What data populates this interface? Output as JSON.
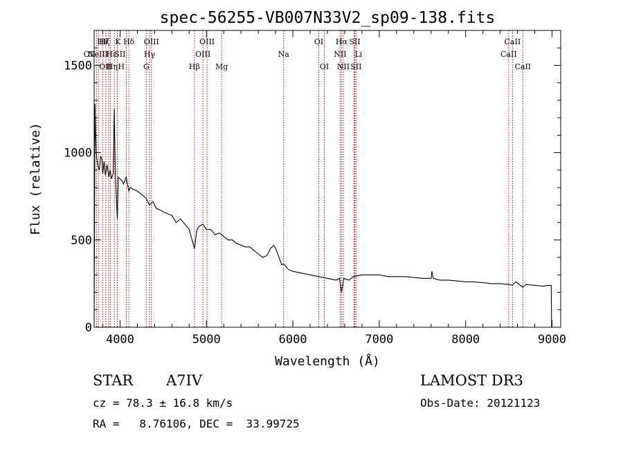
{
  "chart_data": {
    "type": "line",
    "title": "spec-56255-VB007N33V2_sp09-138.fits",
    "xlabel": "Wavelength (Å)",
    "ylabel": "Flux (relative)",
    "xlim": [
      3700,
      9100
    ],
    "ylim": [
      0,
      1700
    ],
    "xticks": [
      {
        "value": 4000,
        "label": "4000"
      },
      {
        "value": 5000,
        "label": "5000"
      },
      {
        "value": 6000,
        "label": "6000"
      },
      {
        "value": 7000,
        "label": "7000"
      },
      {
        "value": 8000,
        "label": "8000"
      },
      {
        "value": 9000,
        "label": "9000"
      }
    ],
    "yticks": [
      {
        "value": 0,
        "label": "0"
      },
      {
        "value": 500,
        "label": "500"
      },
      {
        "value": 1000,
        "label": "1000"
      },
      {
        "value": 1500,
        "label": "1500"
      }
    ],
    "series": [
      {
        "name": "flux",
        "x": [
          3700,
          3710,
          3718,
          3725,
          3735,
          3745,
          3760,
          3775,
          3790,
          3800,
          3815,
          3830,
          3850,
          3870,
          3885,
          3900,
          3920,
          3933,
          3945,
          3968,
          3980,
          4000,
          4020,
          4040,
          4070,
          4101,
          4120,
          4150,
          4200,
          4250,
          4300,
          4340,
          4380,
          4420,
          4470,
          4500,
          4550,
          4600,
          4650,
          4700,
          4750,
          4800,
          4861,
          4890,
          4920,
          4960,
          5000,
          5050,
          5100,
          5150,
          5200,
          5250,
          5300,
          5350,
          5400,
          5450,
          5500,
          5550,
          5600,
          5650,
          5700,
          5740,
          5780,
          5810,
          5840,
          5870,
          5900,
          5950,
          6000,
          6100,
          6200,
          6300,
          6400,
          6500,
          6540,
          6563,
          6590,
          6650,
          6700,
          6800,
          6900,
          7000,
          7100,
          7200,
          7300,
          7400,
          7500,
          7600,
          7610,
          7625,
          7700,
          7800,
          7900,
          8000,
          8100,
          8200,
          8300,
          8400,
          8500,
          8542,
          8580,
          8662,
          8700,
          8800,
          8900,
          8950,
          8990,
          8995,
          9000
        ],
        "y": [
          30,
          1280,
          1100,
          1000,
          950,
          920,
          900,
          980,
          960,
          880,
          950,
          870,
          930,
          860,
          900,
          850,
          880,
          1250,
          880,
          620,
          860,
          850,
          840,
          820,
          860,
          780,
          800,
          790,
          780,
          760,
          740,
          700,
          720,
          680,
          670,
          660,
          650,
          640,
          600,
          620,
          590,
          560,
          450,
          560,
          580,
          590,
          560,
          560,
          530,
          540,
          520,
          500,
          500,
          480,
          470,
          460,
          460,
          440,
          420,
          400,
          410,
          450,
          470,
          440,
          400,
          360,
          360,
          330,
          320,
          310,
          300,
          290,
          280,
          270,
          280,
          200,
          280,
          270,
          290,
          300,
          300,
          300,
          290,
          290,
          290,
          285,
          280,
          280,
          320,
          280,
          270,
          270,
          265,
          260,
          260,
          255,
          250,
          250,
          245,
          240,
          260,
          230,
          245,
          240,
          235,
          240,
          240,
          0,
          0
        ]
      }
    ],
    "lines": [
      {
        "wl": 3727,
        "label": "OII",
        "row": 1,
        "anchor": "end"
      },
      {
        "wl": 3750,
        "label": "OII",
        "row": 2,
        "anchor": "start"
      },
      {
        "wl": 3798,
        "label": "Hθ",
        "row": 0,
        "anchor": "middle"
      },
      {
        "wl": 3835,
        "label": "Hη",
        "row": 2,
        "anchor": "start"
      },
      {
        "wl": 3869,
        "label": "NeIII",
        "row": 1,
        "anchor": "end"
      },
      {
        "wl": 3889,
        "label": "Hζ",
        "row": 0,
        "anchor": "end"
      },
      {
        "wl": 3934,
        "label": "K",
        "row": 0,
        "anchor": "start"
      },
      {
        "wl": 3968,
        "label": "H",
        "row": 2,
        "anchor": "start"
      },
      {
        "wl": 3970,
        "label": "Hε",
        "row": 1,
        "anchor": "end"
      },
      {
        "wl": 4072,
        "label": "SII",
        "row": 1,
        "anchor": "end"
      },
      {
        "wl": 4102,
        "label": "Hδ",
        "row": 0,
        "anchor": "middle"
      },
      {
        "wl": 4304,
        "label": "G",
        "row": 2,
        "anchor": "middle"
      },
      {
        "wl": 4341,
        "label": "Hγ",
        "row": 1,
        "anchor": "middle"
      },
      {
        "wl": 4363,
        "label": "OIII",
        "row": 0,
        "anchor": "middle"
      },
      {
        "wl": 4861,
        "label": "Hβ",
        "row": 2,
        "anchor": "middle"
      },
      {
        "wl": 4959,
        "label": "OIII",
        "row": 1,
        "anchor": "middle"
      },
      {
        "wl": 5007,
        "label": "OIII",
        "row": 0,
        "anchor": "middle"
      },
      {
        "wl": 5175,
        "label": "Mg",
        "row": 2,
        "anchor": "middle"
      },
      {
        "wl": 5893,
        "label": "Na",
        "row": 1,
        "anchor": "middle"
      },
      {
        "wl": 6300,
        "label": "OI",
        "row": 0,
        "anchor": "middle"
      },
      {
        "wl": 6364,
        "label": "OI",
        "row": 2,
        "anchor": "middle"
      },
      {
        "wl": 6548,
        "label": "NII",
        "row": 1,
        "anchor": "middle"
      },
      {
        "wl": 6563,
        "label": "Hα",
        "row": 0,
        "anchor": "middle"
      },
      {
        "wl": 6584,
        "label": "NII",
        "row": 2,
        "anchor": "middle"
      },
      {
        "wl": 6708,
        "label": "Li",
        "row": 1,
        "anchor": "start"
      },
      {
        "wl": 6716,
        "label": "SII",
        "row": 0,
        "anchor": "middle"
      },
      {
        "wl": 6731,
        "label": "SII",
        "row": 2,
        "anchor": "middle"
      },
      {
        "wl": 8498,
        "label": "CaII",
        "row": 1,
        "anchor": "middle"
      },
      {
        "wl": 8542,
        "label": "CaII",
        "row": 0,
        "anchor": "middle"
      },
      {
        "wl": 8662,
        "label": "CaII",
        "row": 2,
        "anchor": "middle"
      }
    ]
  },
  "info": {
    "class": "STAR",
    "subclass": "A7IV",
    "survey": "LAMOST DR3",
    "cz": "cz = 78.3 ± 16.8 km/s",
    "obs_date": "Obs-Date: 20121123",
    "radec": "RA =   8.76106, DEC =  33.99725"
  }
}
